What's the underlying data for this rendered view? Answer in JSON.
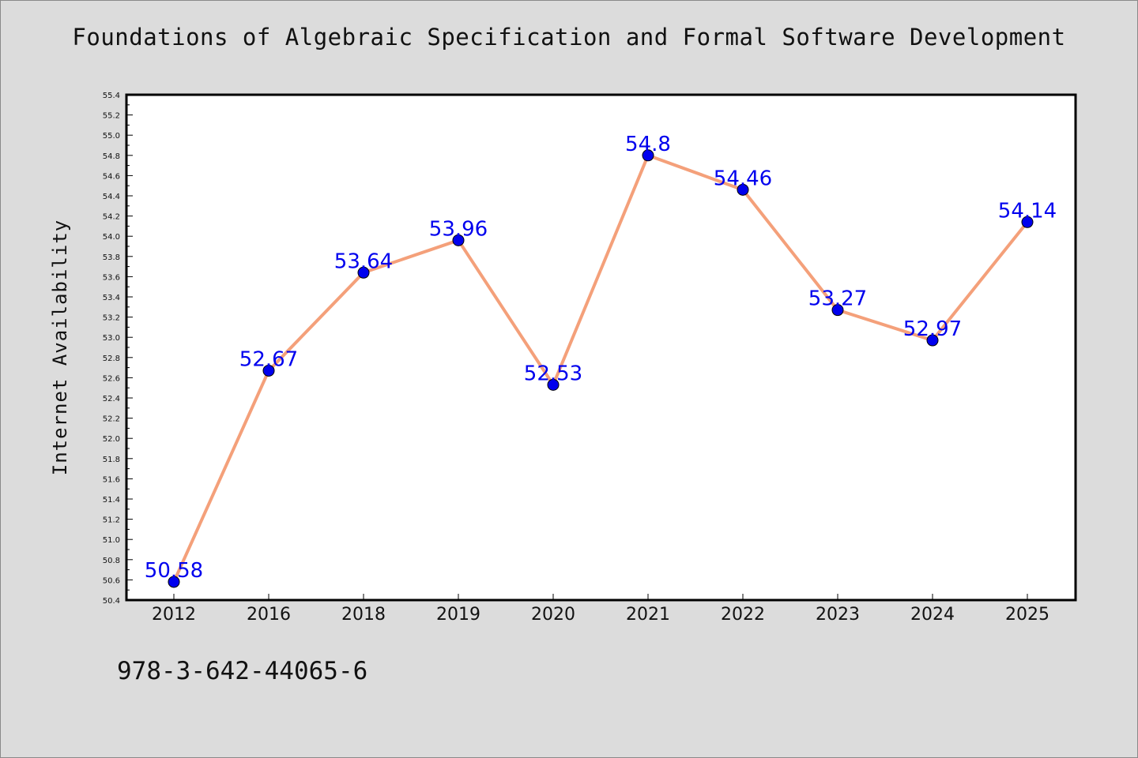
{
  "colors": {
    "background": "#dcdcdc",
    "plot_area": "#ffffff",
    "line": "#f4a07a",
    "marker": "#0000ee",
    "data_label": "#0000ee"
  },
  "footer": {
    "text": "978-3-642-44065-6"
  },
  "chart_data": {
    "type": "line",
    "title": "Foundations of Algebraic Specification and Formal Software Development",
    "xlabel": "",
    "ylabel": "Internet Availability",
    "categories": [
      "2012",
      "2016",
      "2018",
      "2019",
      "2020",
      "2021",
      "2022",
      "2023",
      "2024",
      "2025"
    ],
    "series": [
      {
        "values": [
          50.58,
          52.67,
          53.64,
          53.96,
          52.53,
          54.8,
          54.46,
          53.27,
          52.97,
          54.14
        ]
      }
    ],
    "data_labels": [
      "50.58",
      "52.67",
      "53.64",
      "53.96",
      "52.53",
      "54.8",
      "54.46",
      "53.27",
      "52.97",
      "54.14"
    ],
    "ylim": [
      50.4,
      55.4
    ],
    "yticks": [
      "50.4",
      "50.6",
      "50.8",
      "51.0",
      "51.2",
      "51.4",
      "51.6",
      "51.8",
      "52.0",
      "52.2",
      "52.4",
      "52.6",
      "52.8",
      "53.0",
      "53.2",
      "53.4",
      "53.6",
      "53.8",
      "54.0",
      "54.2",
      "54.4",
      "54.6",
      "54.8",
      "55.0",
      "55.2",
      "55.4"
    ],
    "grid": false,
    "legend": "none"
  }
}
